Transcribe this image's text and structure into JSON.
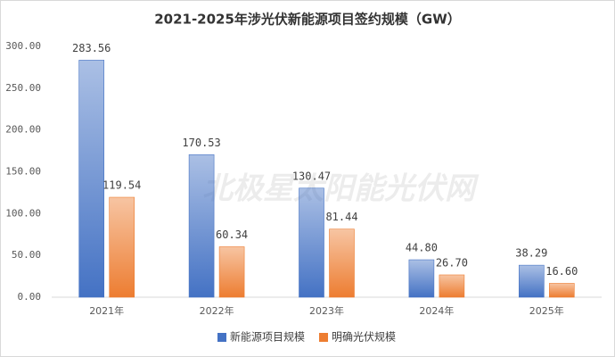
{
  "chart_data": {
    "type": "bar",
    "title": "2021-2025年涉光伏新能源项目签约规模（GW）",
    "watermark": "北极星太阳能光伏网",
    "categories": [
      "2021年",
      "2022年",
      "2023年",
      "2024年",
      "2025年"
    ],
    "series": [
      {
        "name": "新能源项目规模",
        "color": "#4472c4",
        "values": [
          283.56,
          170.53,
          130.47,
          44.8,
          38.29
        ],
        "value_labels": [
          "283.56",
          "170.53",
          "130.47",
          "44.80",
          "38.29"
        ]
      },
      {
        "name": "明确光伏规模",
        "color": "#ed7d31",
        "values": [
          119.54,
          60.34,
          81.44,
          26.7,
          16.6
        ],
        "value_labels": [
          "119.54",
          "60.34",
          "81.44",
          "26.70",
          "16.60"
        ]
      }
    ],
    "ylim": [
      0,
      300
    ],
    "yticks": [
      {
        "value": 0,
        "label": "0.00"
      },
      {
        "value": 50,
        "label": "50.00"
      },
      {
        "value": 100,
        "label": "100.00"
      },
      {
        "value": 150,
        "label": "150.00"
      },
      {
        "value": 200,
        "label": "200.00"
      },
      {
        "value": 250,
        "label": "250.00"
      },
      {
        "value": 300,
        "label": "300.00"
      }
    ],
    "grid": false,
    "legend": "bottom"
  }
}
